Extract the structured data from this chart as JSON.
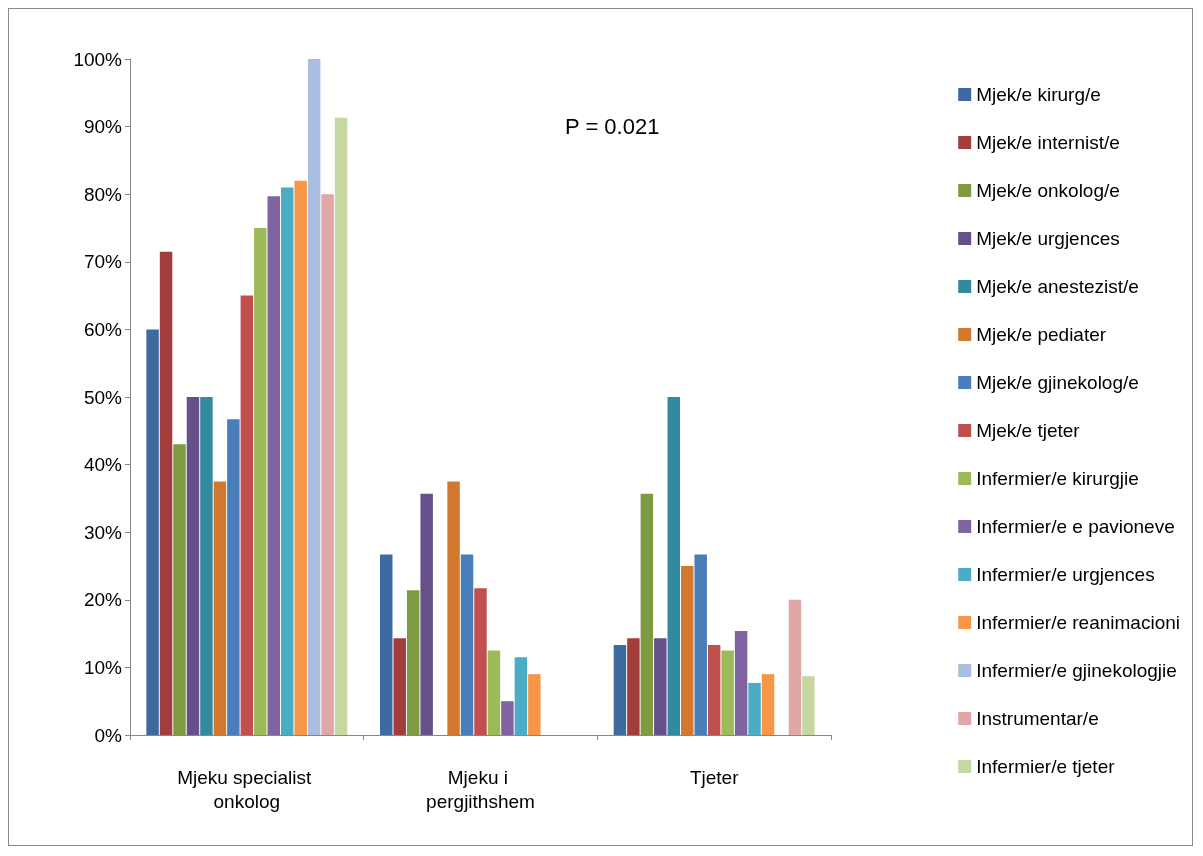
{
  "chart_data": {
    "type": "bar",
    "categories": [
      "Mjeku specialist onkolog",
      "Mjeku i pergjithshem",
      "Tjeter"
    ],
    "series": [
      {
        "name": "Mjek/e kirurg/e",
        "color": "#3e6aa0",
        "values": [
          60,
          26.7,
          13.3
        ]
      },
      {
        "name": "Mjek/e internist/e",
        "color": "#a33d3b",
        "values": [
          71.5,
          14.3,
          14.3
        ]
      },
      {
        "name": "Mjek/e onkolog/e",
        "color": "#7e9b43",
        "values": [
          43,
          21.4,
          35.7
        ]
      },
      {
        "name": "Mjek/e urgjences",
        "color": "#674f8a",
        "values": [
          50,
          35.7,
          14.3
        ]
      },
      {
        "name": "Mjek/e anestezist/e",
        "color": "#33899e",
        "values": [
          50,
          0,
          50
        ]
      },
      {
        "name": "Mjek/e pediater",
        "color": "#d3782f",
        "values": [
          37.5,
          37.5,
          25
        ]
      },
      {
        "name": "Mjek/e gjinekolog/e",
        "color": "#4a7ebb",
        "values": [
          46.7,
          26.7,
          26.7
        ]
      },
      {
        "name": "Mjek/e tjeter",
        "color": "#c0504d",
        "values": [
          65,
          21.7,
          13.3
        ]
      },
      {
        "name": "Infermier/e kirurgjie",
        "color": "#9bbb59",
        "values": [
          75,
          12.5,
          12.5
        ]
      },
      {
        "name": "Infermier/e e pavioneve",
        "color": "#8064a2",
        "values": [
          79.7,
          5,
          15.4
        ]
      },
      {
        "name": "Infermier/e urgjences",
        "color": "#4bacc6",
        "values": [
          81,
          11.5,
          7.7
        ]
      },
      {
        "name": "Infermier/e reanimacioni",
        "color": "#f79646",
        "values": [
          82,
          9,
          9
        ]
      },
      {
        "name": "Infermier/e gjinekologjie",
        "color": "#aabfe0",
        "values": [
          100,
          0,
          0
        ]
      },
      {
        "name": "Instrumentar/e",
        "color": "#dfa7a6",
        "values": [
          80,
          0,
          20
        ]
      },
      {
        "name": "Infermier/e tjeter",
        "color": "#c7d7a4",
        "values": [
          91.3,
          0,
          8.7
        ]
      }
    ],
    "ylim": [
      0,
      100
    ],
    "yticks": [
      {
        "value": 0,
        "label": "0%"
      },
      {
        "value": 10,
        "label": "10%"
      },
      {
        "value": 20,
        "label": "20%"
      },
      {
        "value": 30,
        "label": "30%"
      },
      {
        "value": 40,
        "label": "40%"
      },
      {
        "value": 50,
        "label": "50%"
      },
      {
        "value": 60,
        "label": "60%"
      },
      {
        "value": 70,
        "label": "70%"
      },
      {
        "value": 80,
        "label": "80%"
      },
      {
        "value": 90,
        "label": "90%"
      },
      {
        "value": 100,
        "label": "100%"
      }
    ],
    "grid": false,
    "legend": "right",
    "annotations": [
      "P = 0.021"
    ]
  }
}
